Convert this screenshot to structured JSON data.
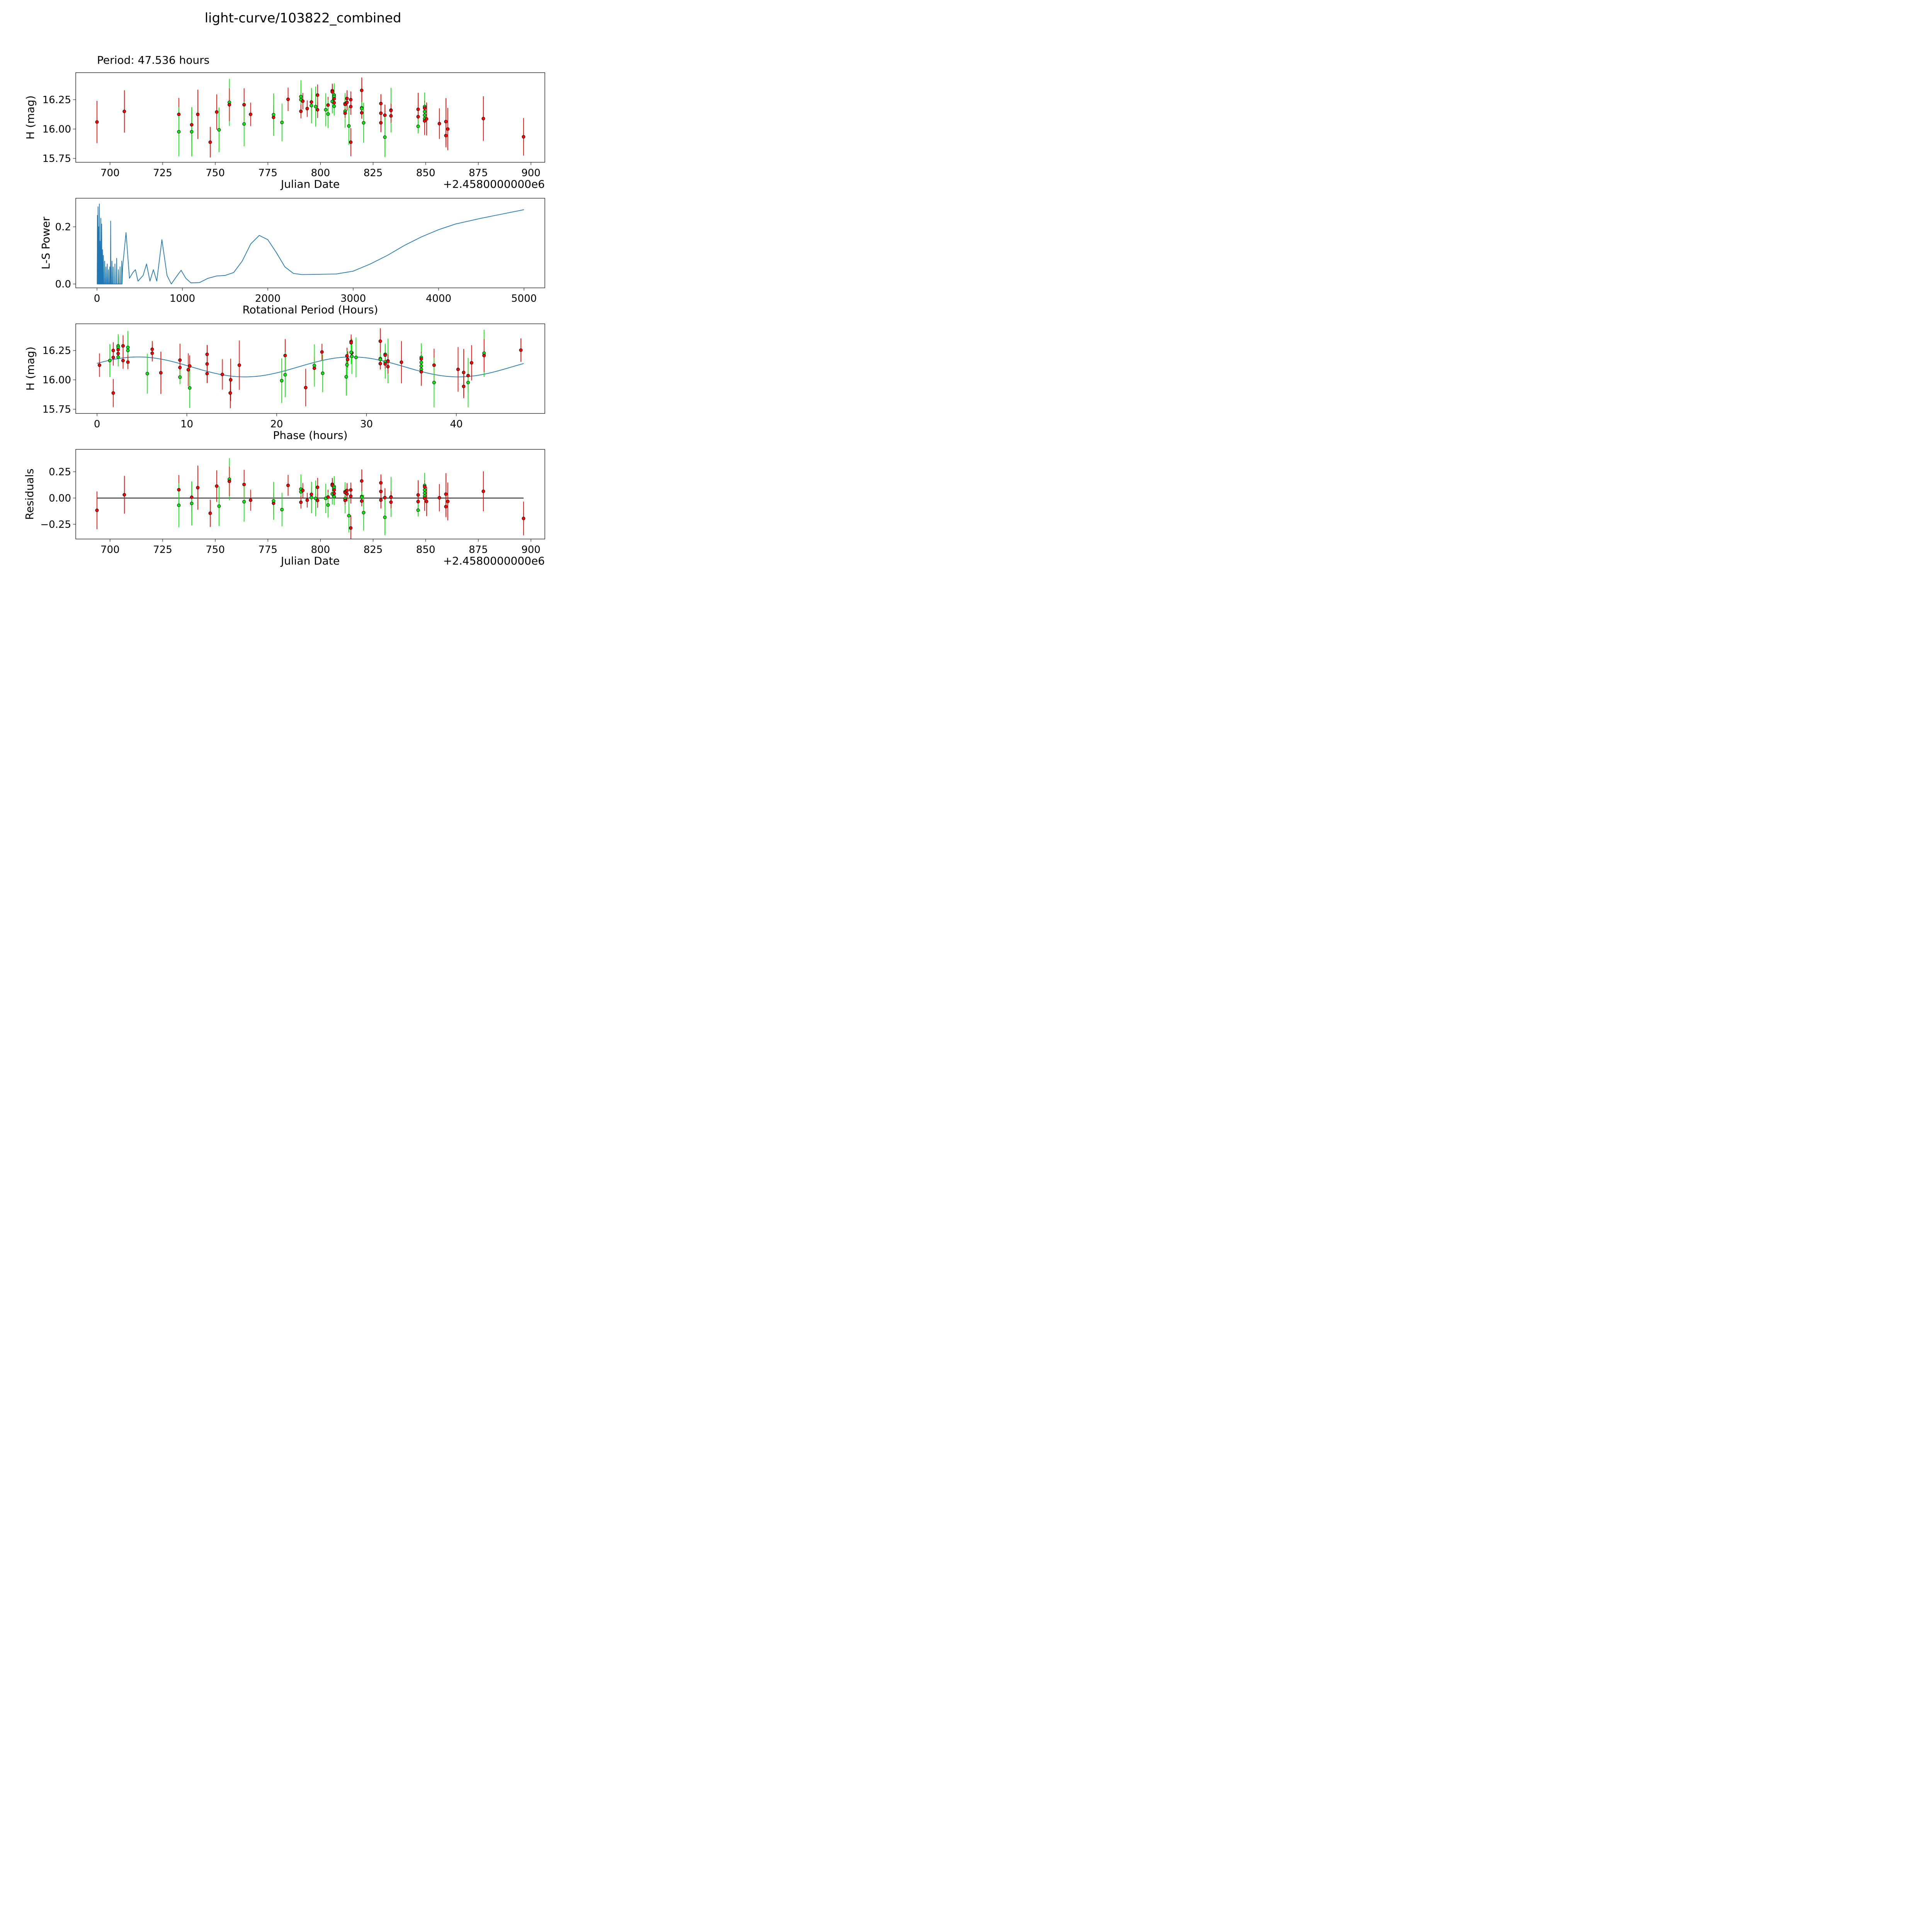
{
  "chart_data": [
    {
      "type": "scatter",
      "title": "light-curve/103822_combined",
      "subtitle": "Period: 47.536 hours",
      "xlabel": "Julian Date",
      "ylabel": "H (mag)",
      "offset_label": "+2.4580000000e6",
      "xlim": [
        683.7,
        906.6
      ],
      "ylim": [
        15.717,
        16.48
      ],
      "xticks": [
        700,
        725,
        750,
        775,
        800,
        825,
        850,
        875,
        900
      ],
      "yticks": [
        "15.75",
        "16.00",
        "16.25"
      ],
      "colors": {
        "r": "#ff0000",
        "g": "#00ee00"
      },
      "points": [
        [
          693.8,
          16.06,
          0.18,
          "r"
        ],
        [
          706.8,
          16.15,
          0.18,
          "r"
        ],
        [
          732.7,
          16.125,
          0.14,
          "r"
        ],
        [
          732.7,
          15.977,
          0.21,
          "g"
        ],
        [
          738.8,
          16.036,
          0.14,
          "r"
        ],
        [
          738.8,
          15.977,
          0.21,
          "g"
        ],
        [
          741.7,
          16.125,
          0.21,
          "r"
        ],
        [
          747.6,
          15.888,
          0.13,
          "r"
        ],
        [
          750.7,
          16.145,
          0.15,
          "r"
        ],
        [
          751.8,
          15.993,
          0.19,
          "g"
        ],
        [
          756.7,
          16.227,
          0.2,
          "g"
        ],
        [
          756.7,
          16.207,
          0.14,
          "r"
        ],
        [
          763.7,
          16.207,
          0.14,
          "r"
        ],
        [
          763.7,
          16.043,
          0.19,
          "g"
        ],
        [
          766.8,
          16.125,
          0.1,
          "r"
        ],
        [
          777.7,
          16.099,
          0.1,
          "r"
        ],
        [
          777.7,
          16.122,
          0.18,
          "g"
        ],
        [
          781.7,
          16.056,
          0.16,
          "g"
        ],
        [
          784.6,
          16.253,
          0.1,
          "r"
        ],
        [
          790.7,
          16.276,
          0.14,
          "g"
        ],
        [
          790.7,
          16.25,
          0.14,
          "g"
        ],
        [
          790.7,
          16.151,
          0.06,
          "r"
        ],
        [
          791.6,
          16.237,
          0.07,
          "r"
        ],
        [
          793.7,
          16.174,
          0.07,
          "r"
        ],
        [
          795.7,
          16.23,
          0.07,
          "r"
        ],
        [
          795.7,
          16.2,
          0.15,
          "g"
        ],
        [
          797.7,
          16.191,
          0.17,
          "g"
        ],
        [
          798.6,
          16.289,
          0.09,
          "r"
        ],
        [
          798.6,
          16.164,
          0.07,
          "r"
        ],
        [
          802.5,
          16.164,
          0.14,
          "g"
        ],
        [
          803.6,
          16.204,
          0.07,
          "r"
        ],
        [
          803.6,
          16.128,
          0.12,
          "g"
        ],
        [
          805.6,
          16.326,
          0.06,
          "r"
        ],
        [
          805.6,
          16.316,
          0.06,
          "r"
        ],
        [
          805.6,
          16.234,
          0.1,
          "g"
        ],
        [
          806.5,
          16.289,
          0.1,
          "g"
        ],
        [
          806.5,
          16.276,
          0.1,
          "g"
        ],
        [
          806.5,
          16.257,
          0.05,
          "r"
        ],
        [
          806.5,
          16.224,
          0.05,
          "r"
        ],
        [
          806.5,
          16.194,
          0.08,
          "g"
        ],
        [
          811.7,
          16.217,
          0.09,
          "g"
        ],
        [
          811.7,
          16.21,
          0.04,
          "r"
        ],
        [
          811.7,
          16.151,
          0.14,
          "g"
        ],
        [
          811.7,
          16.135,
          0.04,
          "r"
        ],
        [
          812.6,
          16.26,
          0.07,
          "r"
        ],
        [
          812.6,
          16.227,
          0.07,
          "r"
        ],
        [
          813.5,
          16.026,
          0.16,
          "g"
        ],
        [
          814.4,
          16.25,
          0.07,
          "r"
        ],
        [
          814.4,
          16.191,
          0.07,
          "r"
        ],
        [
          814.4,
          15.888,
          0.12,
          "r"
        ],
        [
          819.6,
          16.329,
          0.11,
          "r"
        ],
        [
          819.6,
          16.181,
          0.05,
          "g"
        ],
        [
          819.6,
          16.174,
          0.05,
          "g"
        ],
        [
          819.6,
          16.138,
          0.05,
          "r"
        ],
        [
          820.5,
          16.053,
          0.17,
          "g"
        ],
        [
          828.7,
          16.217,
          0.08,
          "r"
        ],
        [
          828.7,
          16.135,
          0.16,
          "r"
        ],
        [
          828.7,
          16.053,
          0.08,
          "r"
        ],
        [
          830.6,
          16.118,
          0.09,
          "r"
        ],
        [
          830.6,
          15.931,
          0.17,
          "g"
        ],
        [
          833.5,
          16.161,
          0.19,
          "g"
        ],
        [
          833.5,
          16.158,
          0.06,
          "r"
        ],
        [
          833.5,
          16.112,
          0.06,
          "r"
        ],
        [
          846.4,
          16.168,
          0.14,
          "r"
        ],
        [
          846.4,
          16.105,
          0.06,
          "r"
        ],
        [
          846.4,
          16.023,
          0.06,
          "g"
        ],
        [
          849.5,
          16.191,
          0.12,
          "g"
        ],
        [
          849.5,
          16.178,
          0.06,
          "r"
        ],
        [
          849.5,
          16.148,
          0.08,
          "g"
        ],
        [
          849.5,
          16.118,
          0.06,
          "g"
        ],
        [
          849.5,
          16.089,
          0.06,
          "g"
        ],
        [
          849.5,
          16.069,
          0.12,
          "r"
        ],
        [
          850.4,
          16.086,
          0.14,
          "r"
        ],
        [
          856.5,
          16.046,
          0.13,
          "r"
        ],
        [
          859.6,
          16.063,
          0.2,
          "r"
        ],
        [
          859.6,
          15.944,
          0.1,
          "r"
        ],
        [
          860.5,
          16.0,
          0.18,
          "r"
        ],
        [
          877.4,
          16.089,
          0.19,
          "r"
        ],
        [
          896.5,
          15.934,
          0.16,
          "r"
        ]
      ]
    },
    {
      "type": "line",
      "xlabel": "Rotational Period (Hours)",
      "ylabel": "L-S Power",
      "xlim": [
        -249,
        5244
      ],
      "ylim": [
        -0.0135,
        0.3
      ],
      "xticks": [
        0,
        1000,
        2000,
        3000,
        4000,
        5000
      ],
      "yticks": [
        "0.0",
        "0.2"
      ],
      "color": "#1f77b4",
      "spikes": [
        [
          5,
          0.24
        ],
        [
          12,
          0.27
        ],
        [
          20,
          0.2
        ],
        [
          28,
          0.28
        ],
        [
          35,
          0.15
        ],
        [
          45,
          0.23
        ],
        [
          55,
          0.21
        ],
        [
          65,
          0.12
        ],
        [
          75,
          0.1
        ],
        [
          90,
          0.08
        ],
        [
          105,
          0.06
        ],
        [
          120,
          0.07
        ],
        [
          135,
          0.05
        ],
        [
          150,
          0.06
        ],
        [
          160,
          0.22
        ],
        [
          175,
          0.08
        ],
        [
          190,
          0.06
        ],
        [
          210,
          0.07
        ],
        [
          230,
          0.09
        ],
        [
          250,
          0.05
        ],
        [
          270,
          0.06
        ],
        [
          290,
          0.08
        ]
      ],
      "curve": [
        [
          300,
          0.06
        ],
        [
          340,
          0.18
        ],
        [
          380,
          0.02
        ],
        [
          420,
          0.04
        ],
        [
          450,
          0.05
        ],
        [
          480,
          0.01
        ],
        [
          540,
          0.03
        ],
        [
          580,
          0.07
        ],
        [
          620,
          0.01
        ],
        [
          660,
          0.05
        ],
        [
          700,
          0.01
        ],
        [
          760,
          0.155
        ],
        [
          820,
          0.03
        ],
        [
          870,
          0.0
        ],
        [
          940,
          0.03
        ],
        [
          985,
          0.048
        ],
        [
          1040,
          0.02
        ],
        [
          1100,
          0.004
        ],
        [
          1200,
          0.005
        ],
        [
          1300,
          0.02
        ],
        [
          1400,
          0.028
        ],
        [
          1500,
          0.03
        ],
        [
          1600,
          0.04
        ],
        [
          1700,
          0.08
        ],
        [
          1800,
          0.14
        ],
        [
          1900,
          0.17
        ],
        [
          2000,
          0.155
        ],
        [
          2100,
          0.11
        ],
        [
          2200,
          0.06
        ],
        [
          2300,
          0.037
        ],
        [
          2400,
          0.033
        ],
        [
          2600,
          0.034
        ],
        [
          2800,
          0.035
        ],
        [
          3000,
          0.045
        ],
        [
          3200,
          0.07
        ],
        [
          3400,
          0.1
        ],
        [
          3600,
          0.135
        ],
        [
          3800,
          0.165
        ],
        [
          4000,
          0.19
        ],
        [
          4200,
          0.21
        ],
        [
          4500,
          0.23
        ],
        [
          5000,
          0.26
        ]
      ]
    },
    {
      "type": "scatter",
      "xlabel": "Phase (hours)",
      "ylabel": "H (mag)",
      "xlim": [
        -2.37,
        49.85
      ],
      "ylim": [
        15.714,
        16.477
      ],
      "xticks": [
        0,
        10,
        20,
        30,
        40
      ],
      "yticks": [
        "15.75",
        "16.00",
        "16.25"
      ],
      "period_hours": 47.536,
      "epoch_jd": 693.504,
      "model": {
        "mean": 16.11,
        "amplitude": 0.085,
        "harmonic": 2,
        "phase_rad": 0.36,
        "color": "#1f77b4"
      }
    },
    {
      "type": "scatter",
      "xlabel": "Julian Date",
      "ylabel": "Residuals",
      "offset_label": "+2.4580000000e6",
      "xlim": [
        683.7,
        906.6
      ],
      "ylim": [
        -0.39,
        0.463
      ],
      "xticks": [
        700,
        725,
        750,
        775,
        800,
        825,
        850,
        875,
        900
      ],
      "yticks": [
        "−0.25",
        "0.00",
        "0.25"
      ]
    }
  ]
}
